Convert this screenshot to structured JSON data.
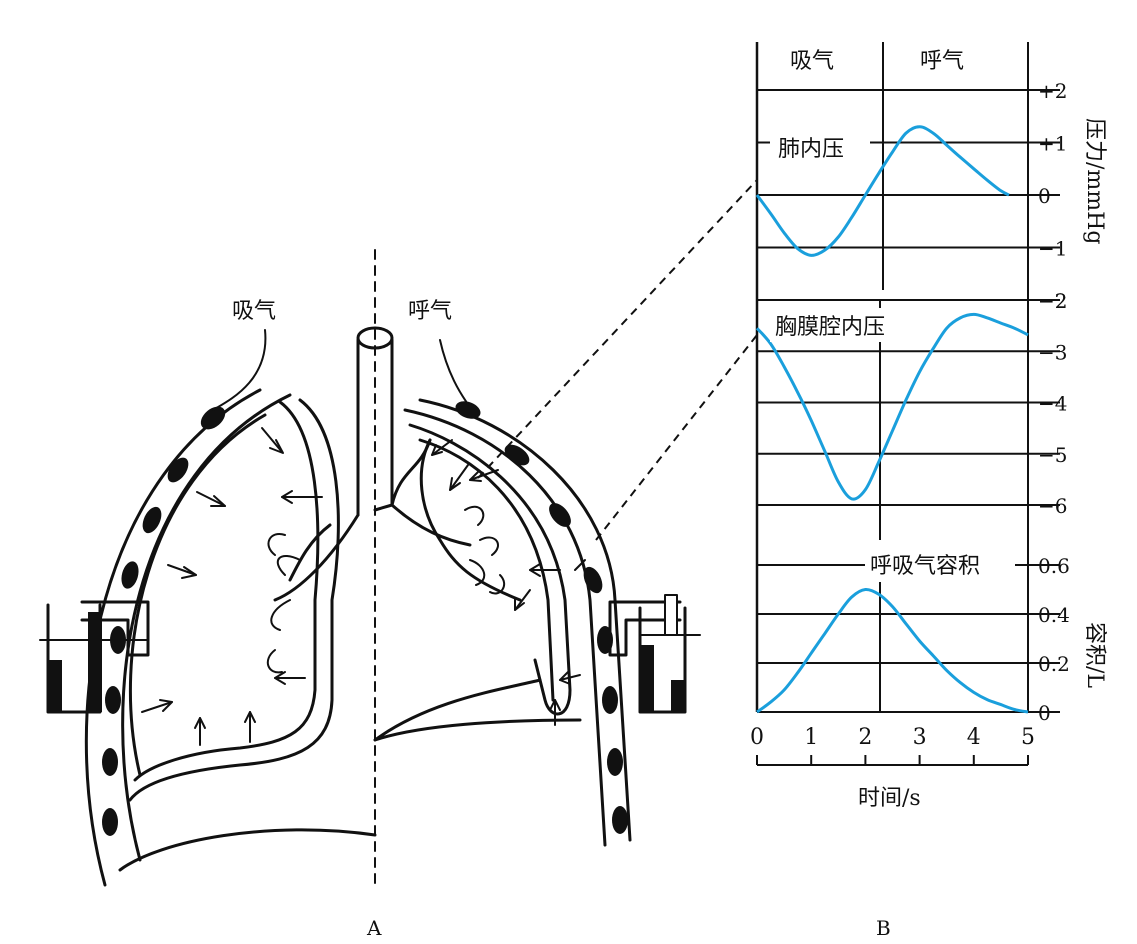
{
  "diagram_a": {
    "inspiration_label": "吸气",
    "expiration_label": "呼气",
    "panel_label": "A"
  },
  "diagram_b": {
    "panel_label": "B",
    "phase_inspiration": "吸气",
    "phase_expiration": "呼气",
    "y_label_pressure": "压力/mmHg",
    "y_label_volume": "容积/L",
    "x_label": "时间/s"
  },
  "colors": {
    "curve": "#1a9fdc",
    "ink": "#111111"
  },
  "chart_data": [
    {
      "type": "line",
      "title": "肺内压",
      "ylabel": "压力/mmHg",
      "ylim": [
        -2,
        2
      ],
      "yticks": [
        "+2",
        "+1",
        "0",
        "−1",
        "−2"
      ],
      "series": [
        {
          "name": "肺内压",
          "x": [
            0,
            0.25,
            0.5,
            0.75,
            1,
            1.25,
            1.5,
            1.75,
            2,
            2.25,
            2.5,
            2.75,
            3,
            3.25,
            3.5,
            3.75,
            4,
            4.25,
            4.5,
            4.65
          ],
          "y": [
            0,
            -0.35,
            -0.72,
            -1.02,
            -1.15,
            -1.05,
            -0.8,
            -0.42,
            0,
            0.42,
            0.82,
            1.18,
            1.3,
            1.18,
            0.95,
            0.72,
            0.5,
            0.28,
            0.08,
            0
          ]
        }
      ]
    },
    {
      "type": "line",
      "title": "胸膜腔内压",
      "ylabel": "压力/mmHg",
      "ylim": [
        -6,
        -2
      ],
      "yticks": [
        "−2",
        "−3",
        "−4",
        "−5",
        "−6"
      ],
      "series": [
        {
          "name": "胸膜腔内压",
          "x": [
            0,
            0.25,
            0.5,
            0.75,
            1,
            1.25,
            1.5,
            1.75,
            2,
            2.25,
            2.5,
            2.75,
            3,
            3.25,
            3.5,
            3.75,
            4,
            4.25,
            4.5,
            4.75,
            5
          ],
          "y": [
            -2.55,
            -2.85,
            -3.3,
            -3.8,
            -4.35,
            -4.95,
            -5.55,
            -5.88,
            -5.7,
            -5.15,
            -4.55,
            -3.95,
            -3.4,
            -2.95,
            -2.55,
            -2.35,
            -2.28,
            -2.35,
            -2.45,
            -2.55,
            -2.68
          ]
        }
      ]
    },
    {
      "type": "line",
      "title": "呼吸气容积",
      "ylabel": "容积/L",
      "xlabel": "时间/s",
      "ylim": [
        0,
        0.6
      ],
      "yticks": [
        "0.6",
        "0.4",
        "0.2",
        "0"
      ],
      "xticks": [
        "0",
        "1",
        "2",
        "3",
        "4",
        "5"
      ],
      "xlim": [
        0,
        5
      ],
      "series": [
        {
          "name": "呼吸气容积",
          "x": [
            0,
            0.25,
            0.5,
            0.75,
            1,
            1.25,
            1.5,
            1.75,
            2,
            2.25,
            2.5,
            2.75,
            3,
            3.25,
            3.5,
            3.75,
            4,
            4.25,
            4.5,
            4.75,
            5
          ],
          "y": [
            0,
            0.04,
            0.09,
            0.16,
            0.24,
            0.32,
            0.4,
            0.47,
            0.5,
            0.48,
            0.43,
            0.36,
            0.29,
            0.23,
            0.17,
            0.12,
            0.08,
            0.05,
            0.03,
            0.01,
            0
          ]
        }
      ]
    }
  ]
}
